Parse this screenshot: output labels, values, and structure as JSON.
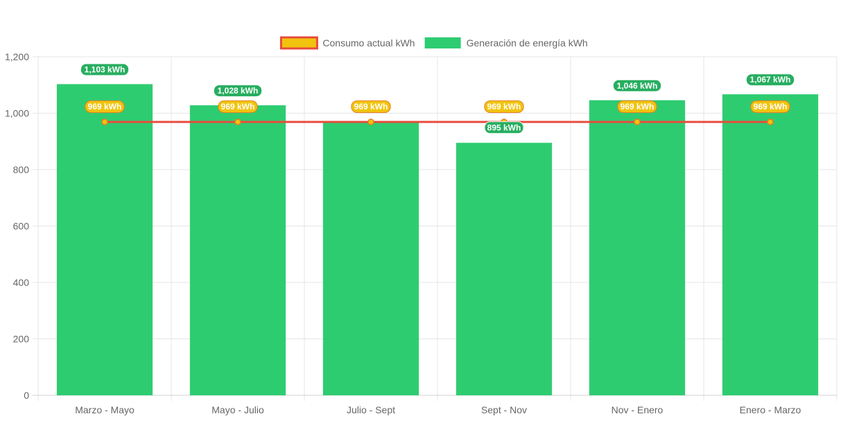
{
  "chart_data": {
    "type": "bar",
    "categories": [
      "Marzo - Mayo",
      "Mayo - Julio",
      "Julio - Sept",
      "Sept - Nov",
      "Nov - Enero",
      "Enero - Marzo"
    ],
    "series": [
      {
        "name": "Consumo actual kWh",
        "type": "line",
        "values": [
          969,
          969,
          969,
          969,
          969,
          969
        ],
        "labels": [
          "969 kWh",
          "969 kWh",
          "969 kWh",
          "969 kWh",
          "969 kWh",
          "969 kWh"
        ],
        "color": "#e74c3c",
        "fill": "#f1c40f"
      },
      {
        "name": "Generación de energía kWh",
        "type": "bar",
        "values": [
          1103,
          1028,
          969,
          895,
          1046,
          1067
        ],
        "labels": [
          "1,103 kWh",
          "1,028 kWh",
          "",
          "895 kWh",
          "1,046 kWh",
          "1,067 kWh"
        ],
        "color": "#2ecc71"
      }
    ],
    "ylim": [
      0,
      1200
    ],
    "yticks": [
      0,
      200,
      400,
      600,
      800,
      1000,
      1200
    ],
    "ytick_labels": [
      "0",
      "200",
      "400",
      "600",
      "800",
      "1,000",
      "1,200"
    ],
    "grid": true,
    "legend_position": "top-center",
    "title": "",
    "xlabel": "",
    "ylabel": ""
  }
}
